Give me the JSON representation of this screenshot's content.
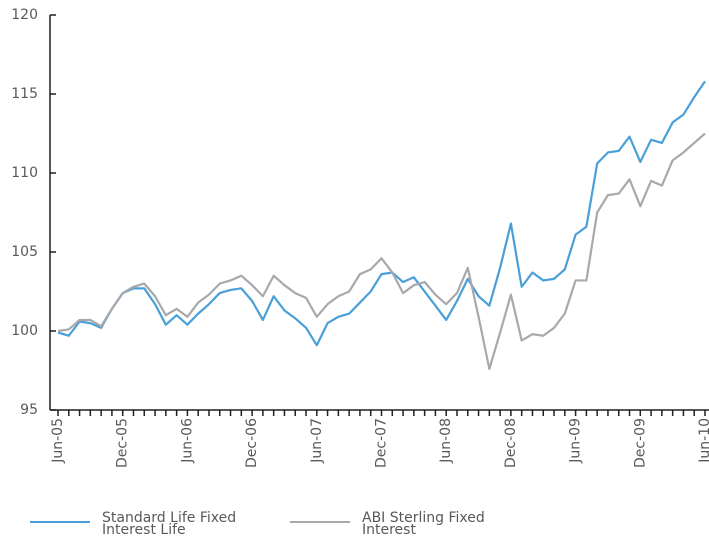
{
  "chart_data": {
    "type": "line",
    "categories": [
      "Jun-05",
      null,
      null,
      null,
      null,
      null,
      "Dec-05",
      null,
      null,
      null,
      null,
      null,
      "Jun-06",
      null,
      null,
      null,
      null,
      null,
      "Dec-06",
      null,
      null,
      null,
      null,
      null,
      "Jun-07",
      null,
      null,
      null,
      null,
      null,
      "Dec-07",
      null,
      null,
      null,
      null,
      null,
      "Jun-08",
      null,
      null,
      null,
      null,
      null,
      "Dec-08",
      null,
      null,
      null,
      null,
      null,
      "Jun-09",
      null,
      null,
      null,
      null,
      null,
      "Dec-09",
      null,
      null,
      null,
      null,
      null,
      "Jun-10"
    ],
    "series": [
      {
        "name": "Standard Life Fixed Interest Life",
        "color": "#4a9fd8",
        "values": [
          99.9,
          99.7,
          100.6,
          100.5,
          100.2,
          101.4,
          102.4,
          102.7,
          102.7,
          101.7,
          100.4,
          101.0,
          100.4,
          101.1,
          101.7,
          102.4,
          102.6,
          102.7,
          101.9,
          100.7,
          102.2,
          101.3,
          100.8,
          100.2,
          99.1,
          100.5,
          100.9,
          101.1,
          101.8,
          102.5,
          103.6,
          103.7,
          103.1,
          103.4,
          102.5,
          101.6,
          100.7,
          101.9,
          103.3,
          102.2,
          101.6,
          104.0,
          106.8,
          102.8,
          103.7,
          103.2,
          103.3,
          103.9,
          106.1,
          106.6,
          110.6,
          111.3,
          111.4,
          112.3,
          110.7,
          112.1,
          111.9,
          113.2,
          113.7,
          114.8,
          115.8
        ]
      },
      {
        "name": "ABI Sterling Fixed Interest",
        "color": "#a7a9ac",
        "values": [
          100.0,
          100.1,
          100.7,
          100.7,
          100.3,
          101.4,
          102.4,
          102.8,
          103.0,
          102.2,
          101.0,
          101.4,
          100.9,
          101.8,
          102.3,
          103.0,
          103.2,
          103.5,
          102.9,
          102.2,
          103.5,
          102.9,
          102.4,
          102.1,
          100.9,
          101.7,
          102.2,
          102.5,
          103.6,
          103.9,
          104.6,
          103.7,
          102.4,
          102.9,
          103.1,
          102.3,
          101.7,
          102.4,
          104.0,
          100.9,
          97.6,
          99.9,
          102.3,
          99.4,
          99.8,
          99.7,
          100.2,
          101.1,
          103.2,
          103.2,
          107.5,
          108.6,
          108.7,
          109.6,
          107.9,
          109.5,
          109.2,
          110.8,
          111.3,
          111.9,
          112.5
        ]
      }
    ],
    "ylim": [
      95,
      120
    ],
    "yticks": [
      95,
      100,
      105,
      110,
      115,
      120
    ],
    "grid": false,
    "legend": "bottom"
  }
}
